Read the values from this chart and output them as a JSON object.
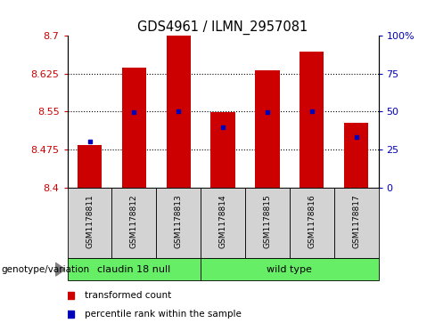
{
  "title": "GDS4961 / ILMN_2957081",
  "categories": [
    "GSM1178811",
    "GSM1178812",
    "GSM1178813",
    "GSM1178814",
    "GSM1178815",
    "GSM1178816",
    "GSM1178817"
  ],
  "bar_bottoms": [
    8.4,
    8.4,
    8.4,
    8.4,
    8.4,
    8.4,
    8.4
  ],
  "bar_tops": [
    8.483,
    8.637,
    8.7,
    8.548,
    8.632,
    8.668,
    8.527
  ],
  "percentile_values": [
    8.491,
    8.549,
    8.551,
    8.519,
    8.549,
    8.55,
    8.499
  ],
  "ylim_left": [
    8.4,
    8.7
  ],
  "ylim_right": [
    0,
    100
  ],
  "yticks_left": [
    8.4,
    8.475,
    8.55,
    8.625,
    8.7
  ],
  "yticks_right": [
    0,
    25,
    50,
    75,
    100
  ],
  "ytick_labels_left": [
    "8.4",
    "8.475",
    "8.55",
    "8.625",
    "8.7"
  ],
  "ytick_labels_right": [
    "0",
    "25",
    "50",
    "75",
    "100%"
  ],
  "group1_label": "claudin 18 null",
  "group1_count": 3,
  "group2_label": "wild type",
  "group2_count": 4,
  "bar_color": "#CC0000",
  "percentile_color": "#0000BB",
  "grid_color": "#000000",
  "group_box_color": "#C0C0C0",
  "sample_box_facecolor": "#D3D3D3",
  "green_color": "#66EE66",
  "label_color_left": "#CC0000",
  "label_color_right": "#0000BB",
  "legend_red_label": "transformed count",
  "legend_blue_label": "percentile rank within the sample",
  "genotype_label": "genotype/variation"
}
